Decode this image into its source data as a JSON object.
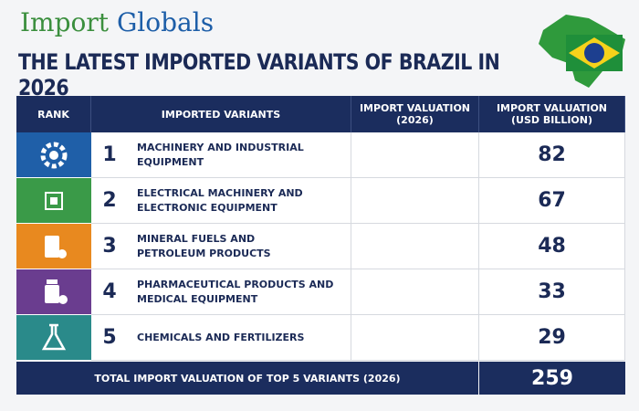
{
  "logo": [
    "Import",
    "Globals"
  ],
  "title": "THE LATEST IMPORTED VARIANTS OF BRAZIL IN 2026",
  "table": {
    "headers": [
      "RANK",
      "IMPORTED VARIANTS",
      "IMPORT VALUATION\n(2026)",
      "IMPORT VALUATION\n(USD BILLION)"
    ],
    "rows": [
      [
        1,
        "MACHINERY AND INDUSTRIAL EQUIPMENT",
        82
      ],
      [
        2,
        "ELECTRICAL MACHINERY AND\nELECTRONIC EQUIPMENT",
        67
      ],
      [
        3,
        "MINERAL FUELS AND\nPETROLEUM PRODUCTS",
        48
      ],
      [
        4,
        "PHARMACEUTICAL PRODUCTS AND\nMEDICAL EQUIPMENT",
        33
      ],
      [
        5,
        "CHEMICALS AND FERTILIZERS",
        29
      ]
    ],
    "footer": [
      "TOTAL IMPORT VALUATION OF TOP 5 VARIANTS (2026)",
      259
    ]
  }
}
